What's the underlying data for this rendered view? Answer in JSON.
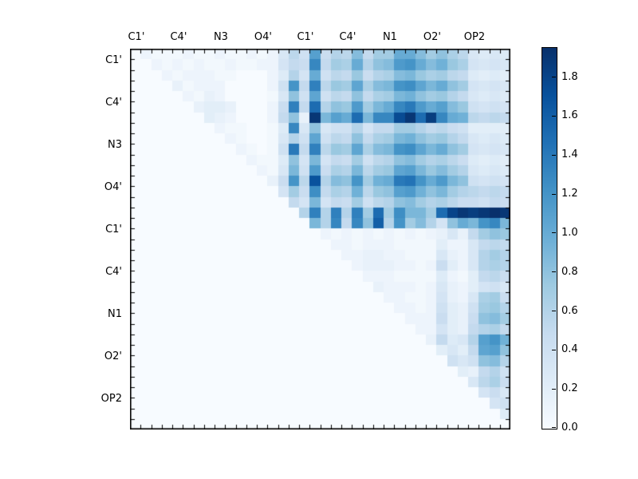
{
  "chart_data": {
    "type": "heatmap",
    "title": "",
    "xlabel": "",
    "ylabel": "",
    "n_rows": 36,
    "n_cols": 36,
    "x_labels": [
      "C1'",
      "C4'",
      "N3",
      "O4'",
      "C1'",
      "C4'",
      "N1",
      "O2'",
      "OP2"
    ],
    "y_labels": [
      "C1'",
      "C4'",
      "N3",
      "O4'",
      "C1'",
      "C4'",
      "N1",
      "O2'",
      "OP2"
    ],
    "label_every": 4,
    "grid": false,
    "background": "#ffffff",
    "colormap": {
      "name": "Blues",
      "anchors": [
        [
          0.0,
          "#f7fbff"
        ],
        [
          0.125,
          "#deebf7"
        ],
        [
          0.25,
          "#c6dbef"
        ],
        [
          0.375,
          "#9ecae1"
        ],
        [
          0.5,
          "#6baed6"
        ],
        [
          0.625,
          "#4292c6"
        ],
        [
          0.75,
          "#2171b5"
        ],
        [
          0.875,
          "#08519c"
        ],
        [
          1.0,
          "#08306b"
        ]
      ]
    },
    "vmin": 0.0,
    "vmax": 1.95,
    "colorbar": {
      "position": "right",
      "tick_values": [
        0.0,
        0.2,
        0.4,
        0.6,
        0.8,
        1.0,
        1.2,
        1.4,
        1.6,
        1.8
      ],
      "tick_labels": [
        "0.0",
        "0.2",
        "0.4",
        "0.6",
        "0.8",
        "1.0",
        "1.2",
        "1.4",
        "1.6",
        "1.8"
      ]
    },
    "matrix": [
      [
        0,
        0.1,
        0.05,
        0.05,
        0.05,
        0.1,
        0.05,
        0.05,
        0.1,
        0.05,
        0.05,
        0.1,
        0.05,
        0.1,
        0.3,
        0.55,
        0.4,
        1.1,
        0.45,
        0.6,
        0.55,
        0.85,
        0.5,
        0.7,
        0.7,
        1.0,
        1.0,
        0.85,
        0.7,
        0.8,
        0.65,
        0.55,
        0.3,
        0.25,
        0.3,
        0.25
      ],
      [
        0,
        0,
        0.1,
        0.05,
        0.1,
        0.05,
        0.1,
        0.05,
        0.05,
        0.1,
        0.05,
        0.05,
        0.1,
        0.1,
        0.35,
        0.5,
        0.45,
        1.3,
        0.5,
        0.7,
        0.65,
        1.0,
        0.6,
        0.8,
        0.85,
        1.15,
        1.2,
        1.0,
        0.85,
        0.95,
        0.75,
        0.65,
        0.35,
        0.3,
        0.35,
        0.3
      ],
      [
        0,
        0,
        0,
        0.1,
        0.05,
        0.1,
        0.1,
        0.1,
        0.05,
        0.05,
        0,
        0,
        0,
        0.1,
        0.25,
        0.6,
        0.35,
        1.0,
        0.4,
        0.55,
        0.5,
        0.75,
        0.45,
        0.6,
        0.65,
        0.85,
        0.9,
        0.75,
        0.65,
        0.7,
        0.55,
        0.5,
        0.25,
        0.2,
        0.25,
        0.2
      ],
      [
        0,
        0,
        0,
        0,
        0.15,
        0.05,
        0.1,
        0.1,
        0.1,
        0,
        0,
        0,
        0,
        0.1,
        0.4,
        1.2,
        0.5,
        1.35,
        0.55,
        0.75,
        0.7,
        1.05,
        0.65,
        0.85,
        0.9,
        1.2,
        1.25,
        1.05,
        0.9,
        1.0,
        0.8,
        0.7,
        0.35,
        0.3,
        0.35,
        0.3
      ],
      [
        0,
        0,
        0,
        0,
        0,
        0.1,
        0.05,
        0.15,
        0.1,
        0,
        0,
        0,
        0,
        0.05,
        0.3,
        0.8,
        0.4,
        1.05,
        0.4,
        0.55,
        0.5,
        0.8,
        0.5,
        0.65,
        0.7,
        0.9,
        0.95,
        0.8,
        0.7,
        0.75,
        0.6,
        0.5,
        0.3,
        0.25,
        0.3,
        0.25
      ],
      [
        0,
        0,
        0,
        0,
        0,
        0,
        0.15,
        0.2,
        0.2,
        0.15,
        0,
        0,
        0,
        0.1,
        0.45,
        1.35,
        0.5,
        1.5,
        0.6,
        0.8,
        0.75,
        1.15,
        0.7,
        0.9,
        1.0,
        1.3,
        1.4,
        1.15,
        1.0,
        1.1,
        0.85,
        0.75,
        0.4,
        0.35,
        0.4,
        0.35
      ],
      [
        0,
        0,
        0,
        0,
        0,
        0,
        0,
        0.2,
        0.15,
        0.1,
        0,
        0,
        0,
        0.1,
        0.5,
        0.8,
        0.15,
        1.9,
        0.9,
        1.1,
        1.0,
        1.5,
        0.9,
        1.3,
        1.3,
        1.75,
        1.9,
        1.5,
        1.85,
        1.3,
        1.0,
        0.95,
        0.55,
        0.5,
        0.55,
        0.5
      ],
      [
        0,
        0,
        0,
        0,
        0,
        0,
        0,
        0,
        0.1,
        0.05,
        0.05,
        0,
        0,
        0.05,
        0.25,
        1.3,
        0.3,
        0.8,
        0.3,
        0.4,
        0.4,
        0.6,
        0.35,
        0.5,
        0.5,
        0.7,
        0.7,
        0.6,
        0.5,
        0.55,
        0.45,
        0.4,
        0.2,
        0.2,
        0.2,
        0.2
      ],
      [
        0,
        0,
        0,
        0,
        0,
        0,
        0,
        0,
        0,
        0.1,
        0.05,
        0,
        0,
        0.05,
        0.3,
        0.6,
        0.4,
        1.05,
        0.4,
        0.55,
        0.5,
        0.8,
        0.5,
        0.65,
        0.7,
        0.9,
        0.95,
        0.8,
        0.7,
        0.75,
        0.6,
        0.5,
        0.3,
        0.25,
        0.3,
        0.25
      ],
      [
        0,
        0,
        0,
        0,
        0,
        0,
        0,
        0,
        0,
        0,
        0.1,
        0.05,
        0,
        0.05,
        0.4,
        1.4,
        0.5,
        1.35,
        0.55,
        0.75,
        0.7,
        1.05,
        0.65,
        0.85,
        0.9,
        1.2,
        1.25,
        1.05,
        0.9,
        1.0,
        0.8,
        0.7,
        0.35,
        0.3,
        0.35,
        0.3
      ],
      [
        0,
        0,
        0,
        0,
        0,
        0,
        0,
        0,
        0,
        0,
        0,
        0.1,
        0.05,
        0.05,
        0.25,
        0.8,
        0.35,
        0.9,
        0.35,
        0.5,
        0.45,
        0.7,
        0.4,
        0.55,
        0.6,
        0.8,
        0.85,
        0.7,
        0.6,
        0.65,
        0.55,
        0.45,
        0.25,
        0.2,
        0.25,
        0.2
      ],
      [
        0,
        0,
        0,
        0,
        0,
        0,
        0,
        0,
        0,
        0,
        0,
        0,
        0.1,
        0.05,
        0.3,
        0.9,
        0.4,
        1.15,
        0.45,
        0.65,
        0.6,
        0.9,
        0.55,
        0.7,
        0.75,
        1.05,
        1.1,
        0.9,
        0.75,
        0.85,
        0.7,
        0.6,
        0.3,
        0.25,
        0.3,
        0.25
      ],
      [
        0,
        0,
        0,
        0,
        0,
        0,
        0,
        0,
        0,
        0,
        0,
        0,
        0,
        0.15,
        0.45,
        1.2,
        0.55,
        1.7,
        0.6,
        0.85,
        0.8,
        1.2,
        0.7,
        0.95,
        1.0,
        1.4,
        1.45,
        1.2,
        1.0,
        1.15,
        0.9,
        0.8,
        0.4,
        0.35,
        0.4,
        0.35
      ],
      [
        0,
        0,
        0,
        0,
        0,
        0,
        0,
        0,
        0,
        0,
        0,
        0,
        0,
        0,
        0.35,
        0.7,
        0.45,
        1.25,
        0.5,
        0.65,
        0.6,
        0.95,
        0.55,
        0.75,
        0.8,
        1.1,
        1.15,
        0.95,
        0.8,
        0.9,
        0.7,
        0.6,
        0.55,
        0.5,
        0.55,
        0.5
      ],
      [
        0,
        0,
        0,
        0,
        0,
        0,
        0,
        0,
        0,
        0,
        0,
        0,
        0,
        0,
        0,
        0.5,
        0.35,
        0.9,
        0.35,
        0.5,
        0.45,
        0.7,
        0.4,
        0.55,
        0.6,
        0.8,
        0.85,
        0.7,
        0.6,
        0.65,
        0.55,
        0.45,
        0.45,
        0.4,
        0.5,
        0.45
      ],
      [
        0,
        0,
        0,
        0,
        0,
        0,
        0,
        0,
        0,
        0,
        0,
        0,
        0,
        0,
        0,
        0,
        0.6,
        1.35,
        0.6,
        1.35,
        0.6,
        1.35,
        0.7,
        1.5,
        0.7,
        1.25,
        0.9,
        0.9,
        0.7,
        1.5,
        1.8,
        1.9,
        1.85,
        1.9,
        1.95,
        1.9
      ],
      [
        0,
        0,
        0,
        0,
        0,
        0,
        0,
        0,
        0,
        0,
        0,
        0,
        0,
        0,
        0,
        0,
        0,
        0.9,
        0.6,
        1.3,
        0.5,
        1.3,
        0.8,
        1.6,
        0.6,
        1.2,
        0.7,
        0.85,
        0.6,
        0.35,
        0.8,
        1.0,
        0.9,
        1.2,
        1.3,
        0.9
      ],
      [
        0,
        0,
        0,
        0,
        0,
        0,
        0,
        0,
        0,
        0,
        0,
        0,
        0,
        0,
        0,
        0,
        0,
        0,
        0.1,
        0.05,
        0.1,
        0.05,
        0.1,
        0.05,
        0.1,
        0.05,
        0.1,
        0.05,
        0.1,
        0.15,
        0.3,
        0.15,
        0.5,
        0.7,
        0.8,
        0.75
      ],
      [
        0,
        0,
        0,
        0,
        0,
        0,
        0,
        0,
        0,
        0,
        0,
        0,
        0,
        0,
        0,
        0,
        0,
        0,
        0,
        0.1,
        0.1,
        0.05,
        0.1,
        0.1,
        0.1,
        0.05,
        0.05,
        0.05,
        0.05,
        0.2,
        0.1,
        0.1,
        0.3,
        0.5,
        0.55,
        0.5
      ],
      [
        0,
        0,
        0,
        0,
        0,
        0,
        0,
        0,
        0,
        0,
        0,
        0,
        0,
        0,
        0,
        0,
        0,
        0,
        0,
        0,
        0.1,
        0.1,
        0.15,
        0.15,
        0.1,
        0.1,
        0.05,
        0.05,
        0.05,
        0.3,
        0.15,
        0.1,
        0.3,
        0.6,
        0.7,
        0.6
      ],
      [
        0,
        0,
        0,
        0,
        0,
        0,
        0,
        0,
        0,
        0,
        0,
        0,
        0,
        0,
        0,
        0,
        0,
        0,
        0,
        0,
        0,
        0.1,
        0.15,
        0.15,
        0.15,
        0.1,
        0.1,
        0.05,
        0.1,
        0.45,
        0.2,
        0.1,
        0.3,
        0.6,
        0.65,
        0.6
      ],
      [
        0,
        0,
        0,
        0,
        0,
        0,
        0,
        0,
        0,
        0,
        0,
        0,
        0,
        0,
        0,
        0,
        0,
        0,
        0,
        0,
        0,
        0,
        0.1,
        0.1,
        0.1,
        0.05,
        0.05,
        0.05,
        0.05,
        0.25,
        0.1,
        0.05,
        0.2,
        0.5,
        0.55,
        0.45
      ],
      [
        0,
        0,
        0,
        0,
        0,
        0,
        0,
        0,
        0,
        0,
        0,
        0,
        0,
        0,
        0,
        0,
        0,
        0,
        0,
        0,
        0,
        0,
        0,
        0.15,
        0.1,
        0.1,
        0.1,
        0.05,
        0.1,
        0.3,
        0.15,
        0.1,
        0.2,
        0.35,
        0.4,
        0.3
      ],
      [
        0,
        0,
        0,
        0,
        0,
        0,
        0,
        0,
        0,
        0,
        0,
        0,
        0,
        0,
        0,
        0,
        0,
        0,
        0,
        0,
        0,
        0,
        0,
        0,
        0.1,
        0.1,
        0.05,
        0.05,
        0.1,
        0.35,
        0.15,
        0.1,
        0.3,
        0.65,
        0.7,
        0.45
      ],
      [
        0,
        0,
        0,
        0,
        0,
        0,
        0,
        0,
        0,
        0,
        0,
        0,
        0,
        0,
        0,
        0,
        0,
        0,
        0,
        0,
        0,
        0,
        0,
        0,
        0,
        0.1,
        0.1,
        0.05,
        0.1,
        0.4,
        0.2,
        0.15,
        0.4,
        0.7,
        0.75,
        0.6
      ],
      [
        0,
        0,
        0,
        0,
        0,
        0,
        0,
        0,
        0,
        0,
        0,
        0,
        0,
        0,
        0,
        0,
        0,
        0,
        0,
        0,
        0,
        0,
        0,
        0,
        0,
        0,
        0.1,
        0.1,
        0.1,
        0.45,
        0.2,
        0.15,
        0.45,
        0.8,
        0.85,
        0.7
      ],
      [
        0,
        0,
        0,
        0,
        0,
        0,
        0,
        0,
        0,
        0,
        0,
        0,
        0,
        0,
        0,
        0,
        0,
        0,
        0,
        0,
        0,
        0,
        0,
        0,
        0,
        0,
        0,
        0.1,
        0.1,
        0.35,
        0.2,
        0.15,
        0.5,
        0.6,
        0.65,
        0.5
      ],
      [
        0,
        0,
        0,
        0,
        0,
        0,
        0,
        0,
        0,
        0,
        0,
        0,
        0,
        0,
        0,
        0,
        0,
        0,
        0,
        0,
        0,
        0,
        0,
        0,
        0,
        0,
        0,
        0,
        0.15,
        0.5,
        0.25,
        0.3,
        0.6,
        1.1,
        1.2,
        0.95
      ],
      [
        0,
        0,
        0,
        0,
        0,
        0,
        0,
        0,
        0,
        0,
        0,
        0,
        0,
        0,
        0,
        0,
        0,
        0,
        0,
        0,
        0,
        0,
        0,
        0,
        0,
        0,
        0,
        0,
        0,
        0.2,
        0.3,
        0.2,
        0.5,
        1.05,
        1.1,
        0.8
      ],
      [
        0,
        0,
        0,
        0,
        0,
        0,
        0,
        0,
        0,
        0,
        0,
        0,
        0,
        0,
        0,
        0,
        0,
        0,
        0,
        0,
        0,
        0,
        0,
        0,
        0,
        0,
        0,
        0,
        0,
        0,
        0.4,
        0.3,
        0.4,
        0.8,
        0.85,
        0.6
      ],
      [
        0,
        0,
        0,
        0,
        0,
        0,
        0,
        0,
        0,
        0,
        0,
        0,
        0,
        0,
        0,
        0,
        0,
        0,
        0,
        0,
        0,
        0,
        0,
        0,
        0,
        0,
        0,
        0,
        0,
        0,
        0,
        0.2,
        0.15,
        0.5,
        0.6,
        0.4
      ],
      [
        0,
        0,
        0,
        0,
        0,
        0,
        0,
        0,
        0,
        0,
        0,
        0,
        0,
        0,
        0,
        0,
        0,
        0,
        0,
        0,
        0,
        0,
        0,
        0,
        0,
        0,
        0,
        0,
        0,
        0,
        0,
        0,
        0.3,
        0.55,
        0.65,
        0.45
      ],
      [
        0,
        0,
        0,
        0,
        0,
        0,
        0,
        0,
        0,
        0,
        0,
        0,
        0,
        0,
        0,
        0,
        0,
        0,
        0,
        0,
        0,
        0,
        0,
        0,
        0,
        0,
        0,
        0,
        0,
        0,
        0,
        0,
        0,
        0.35,
        0.45,
        0.3
      ],
      [
        0,
        0,
        0,
        0,
        0,
        0,
        0,
        0,
        0,
        0,
        0,
        0,
        0,
        0,
        0,
        0,
        0,
        0,
        0,
        0,
        0,
        0,
        0,
        0,
        0,
        0,
        0,
        0,
        0,
        0,
        0,
        0,
        0,
        0,
        0.35,
        0.4
      ],
      [
        0,
        0,
        0,
        0,
        0,
        0,
        0,
        0,
        0,
        0,
        0,
        0,
        0,
        0,
        0,
        0,
        0,
        0,
        0,
        0,
        0,
        0,
        0,
        0,
        0,
        0,
        0,
        0,
        0,
        0,
        0,
        0,
        0,
        0,
        0,
        0.25
      ],
      [
        0,
        0,
        0,
        0,
        0,
        0,
        0,
        0,
        0,
        0,
        0,
        0,
        0,
        0,
        0,
        0,
        0,
        0,
        0,
        0,
        0,
        0,
        0,
        0,
        0,
        0,
        0,
        0,
        0,
        0,
        0,
        0,
        0,
        0,
        0,
        0
      ]
    ]
  }
}
